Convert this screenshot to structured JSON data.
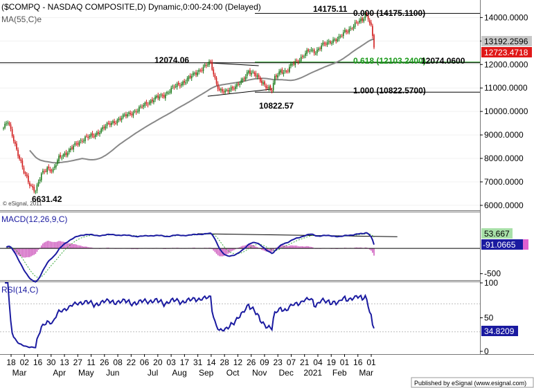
{
  "header": {
    "title": "($COMPQ - NASDAQ COMPOSITE,D) Dynamic,0:00-24:00 (Delayed)",
    "ma_label": "MA(55,C)e",
    "copyright": "© eSignal, 2011"
  },
  "footer": {
    "published": "Published by eSignal (www.esignal.com)"
  },
  "chart_data": [
    {
      "type": "candlestick",
      "panel": "price",
      "yticks": [
        "14000.0000",
        "13000.0000",
        "12000.0000",
        "11000.0000",
        "10000.0000",
        "9000.0000",
        "8000.0000",
        "7000.0000",
        "6000.0000"
      ],
      "ylim": [
        5850,
        14600
      ],
      "last_price": "12723.4718",
      "ma_value": "13192.2596",
      "ma_period": 55,
      "annotations": {
        "high_label": "14175.11",
        "mid_label": "12074.06",
        "low_label": "10822.57",
        "bottom_label": "6631.42"
      },
      "fib_levels": [
        {
          "label": "0.000 (14175.1100)",
          "value": 14175.11,
          "color": "#000000"
        },
        {
          "label": "0.618 (12103.2400)",
          "value": 12103.24,
          "color": "#1a9a1a"
        },
        {
          "label": "1.000 (10822.5700)",
          "value": 10822.57,
          "color": "#000000"
        }
      ],
      "resistance": {
        "label": "12074.0600",
        "value": 12074.06
      }
    },
    {
      "type": "line",
      "panel": "macd",
      "title": "MACD(12,26,9,C)",
      "ylim": [
        -600,
        700
      ],
      "yticks": [
        "-500"
      ],
      "macd_value": "-91.0665",
      "signal_value": "53.667",
      "histogram_color": "#d060c0"
    },
    {
      "type": "line",
      "panel": "rsi",
      "title": "RSI(14,C)",
      "ylim": [
        0,
        100
      ],
      "yticks": [
        "100",
        "50",
        "0"
      ],
      "rsi_value": "34.8209"
    },
    {
      "type": "axis",
      "panel": "x-axis",
      "ticks": [
        "18",
        "02",
        "16",
        "30",
        "13",
        "27",
        "11",
        "26",
        "08",
        "22",
        "06",
        "20",
        "03",
        "17",
        "31",
        "14",
        "28",
        "12",
        "26",
        "09",
        "23",
        "07",
        "21",
        "04",
        "19",
        "01",
        "16",
        "01"
      ],
      "months": [
        "Mar",
        "Apr",
        "May",
        "Jun",
        "Jul",
        "Aug",
        "Sep",
        "Oct",
        "Nov",
        "Dec",
        "2021",
        "Feb",
        "Mar"
      ]
    }
  ]
}
